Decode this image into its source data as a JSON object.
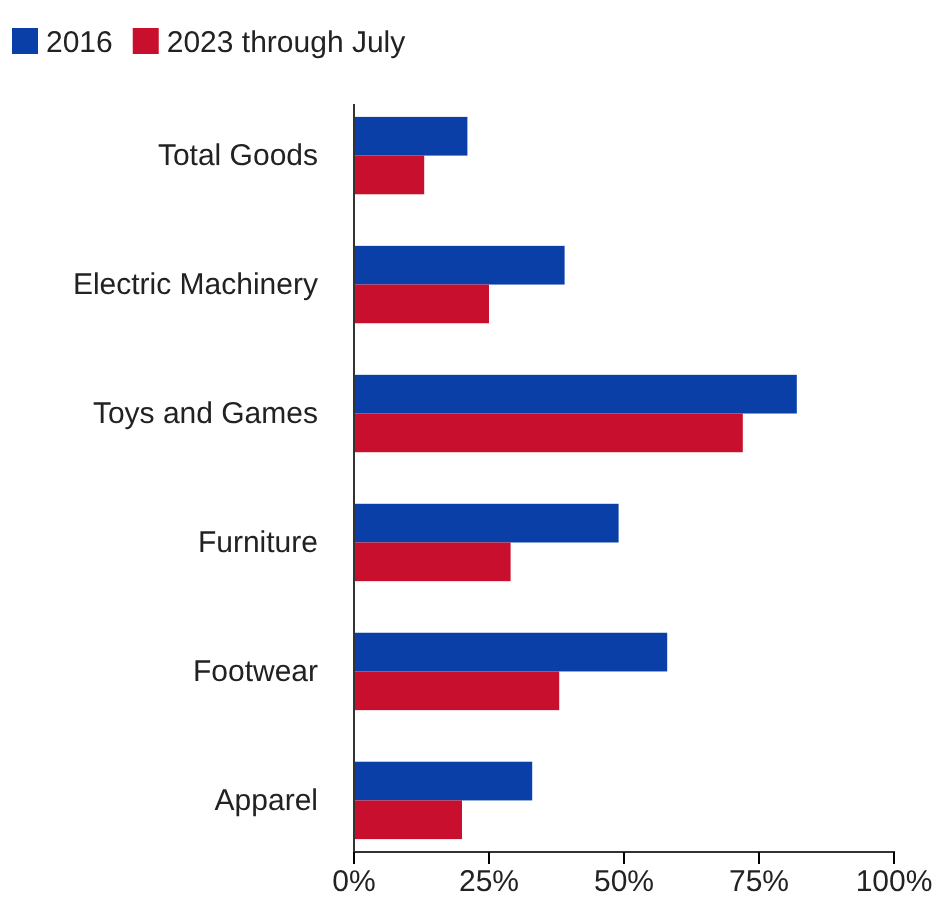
{
  "chart_data": {
    "type": "bar",
    "orientation": "horizontal",
    "categories": [
      "Total Goods",
      "Electric Machinery",
      "Toys and Games",
      "Furniture",
      "Footwear",
      "Apparel"
    ],
    "series": [
      {
        "name": "2016",
        "color": "#0a3fa8",
        "values": [
          21,
          39,
          82,
          49,
          58,
          33
        ]
      },
      {
        "name": "2023 through July",
        "color": "#c8102e",
        "values": [
          13,
          25,
          72,
          29,
          38,
          20
        ]
      }
    ],
    "xlim": [
      0,
      100
    ],
    "xticks": [
      {
        "value": 0,
        "label": "0%"
      },
      {
        "value": 25,
        "label": "25%"
      },
      {
        "value": 50,
        "label": "50%"
      },
      {
        "value": 75,
        "label": "75%"
      },
      {
        "value": 100,
        "label": "100%"
      }
    ],
    "grid": false,
    "legend": "top left"
  }
}
